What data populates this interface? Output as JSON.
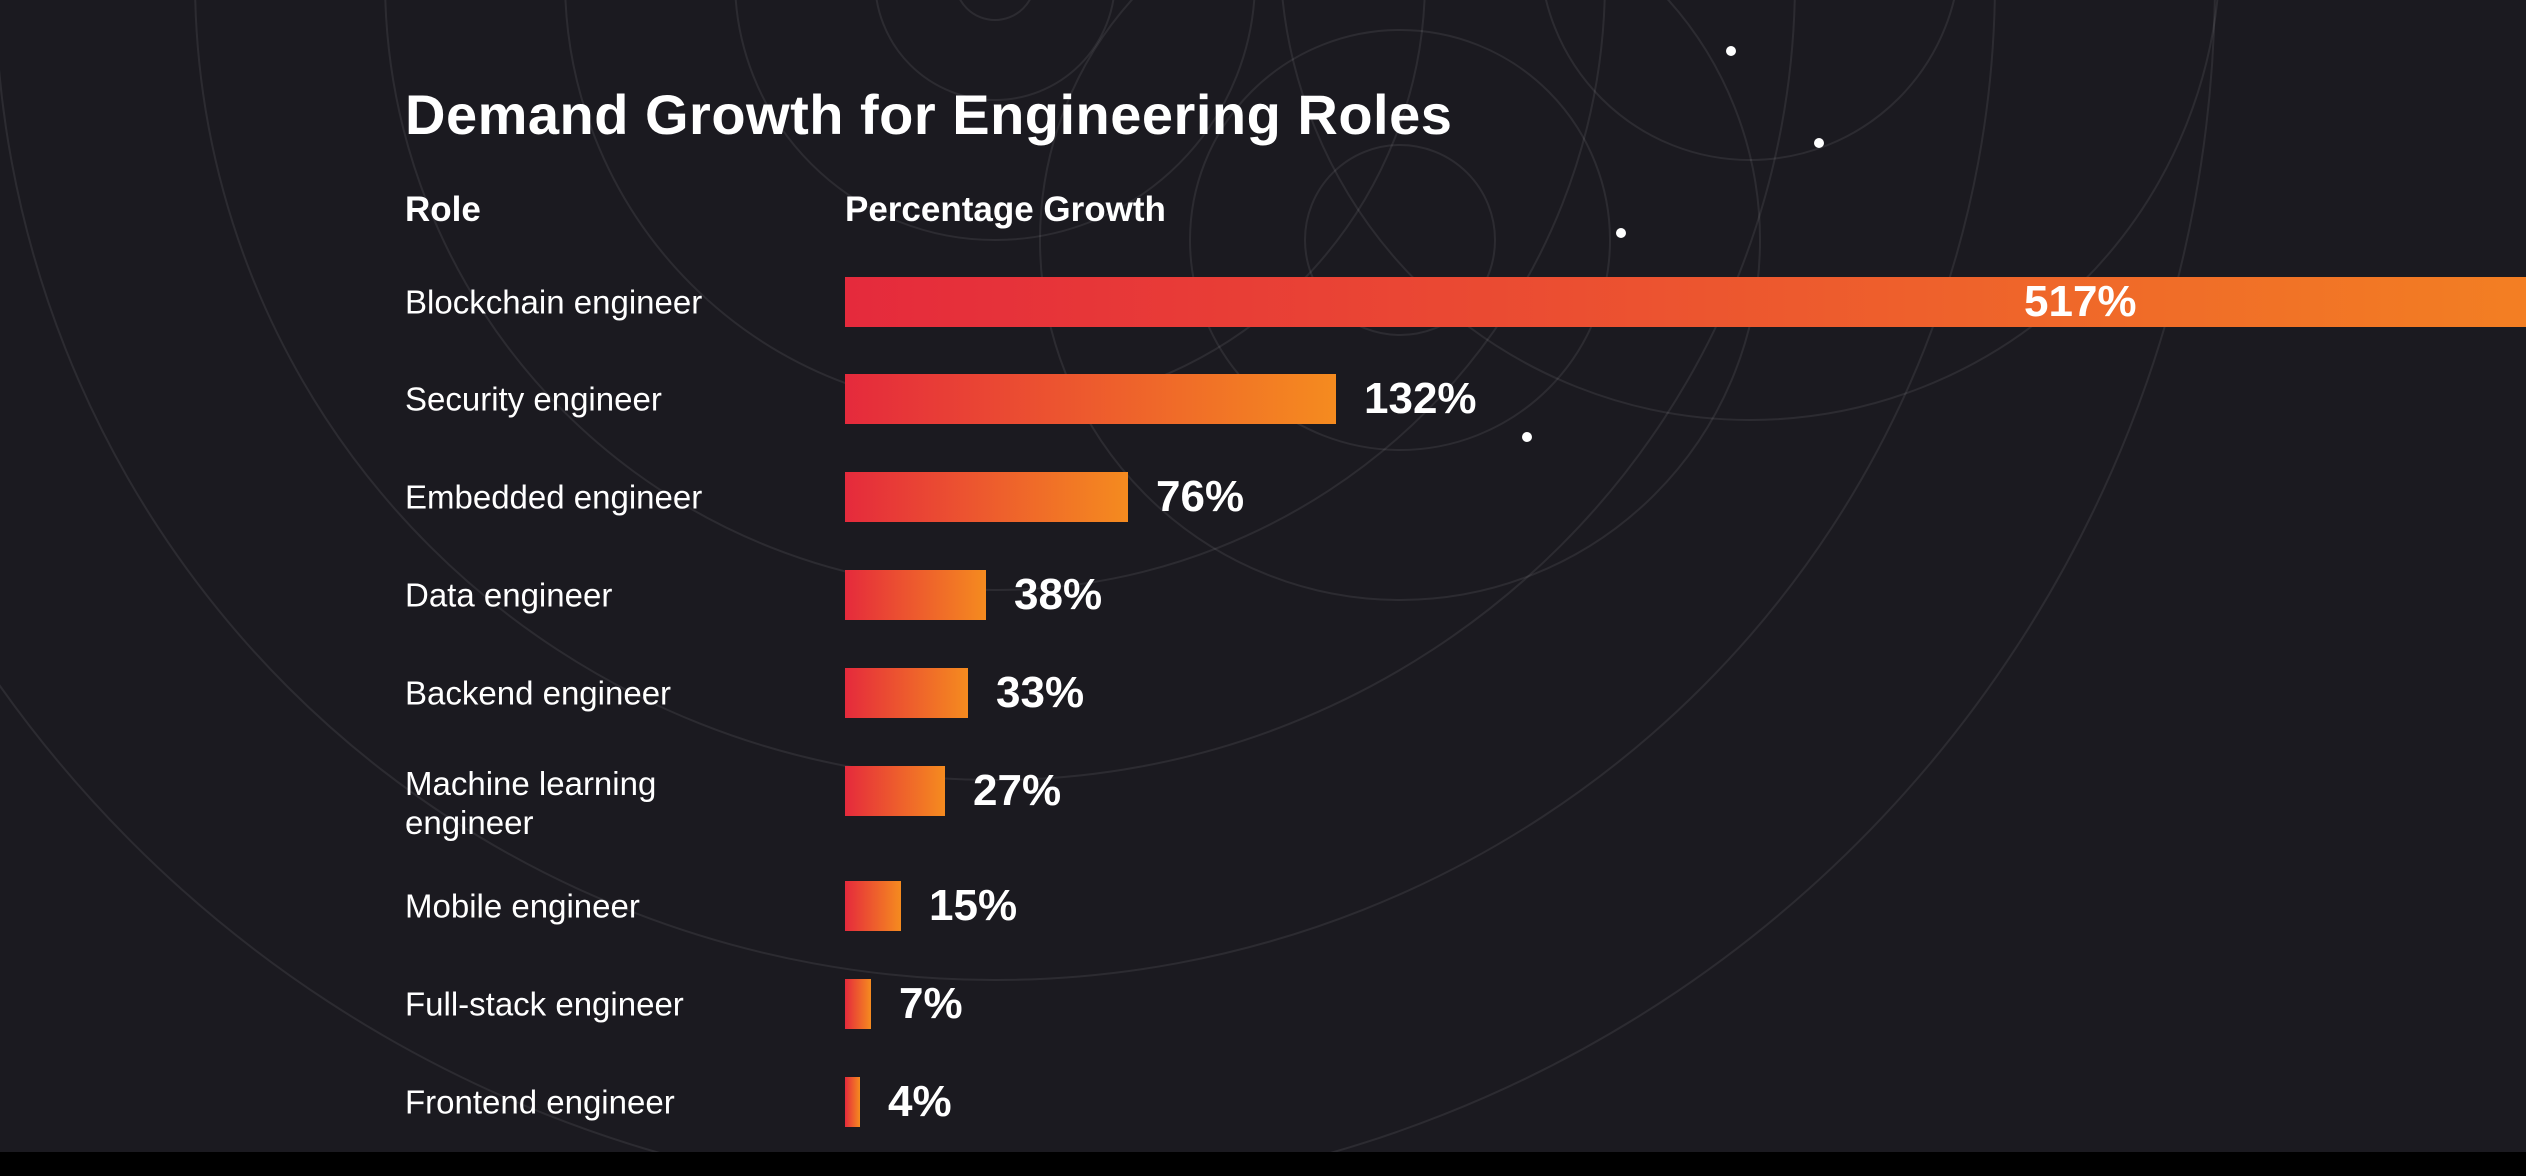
{
  "colors": {
    "background": "#1b1a20",
    "bar_start": "#e52a3c",
    "bar_end": "#f58b1f",
    "text": "#ffffff"
  },
  "chart_data": {
    "type": "bar",
    "orientation": "horizontal",
    "title": "Demand Growth for Engineering Roles",
    "category_header": "Role",
    "value_header": "Percentage Growth",
    "categories": [
      "Blockchain engineer",
      "Security engineer",
      "Embedded engineer",
      "Data engineer",
      "Backend engineer",
      "Machine learning engineer",
      "Mobile engineer",
      "Full-stack engineer",
      "Frontend engineer"
    ],
    "values": [
      517,
      132,
      76,
      38,
      33,
      27,
      15,
      7,
      4
    ],
    "value_labels": [
      "517%",
      "132%",
      "76%",
      "38%",
      "33%",
      "27%",
      "15%",
      "7%",
      "4%"
    ],
    "unit": "%"
  }
}
